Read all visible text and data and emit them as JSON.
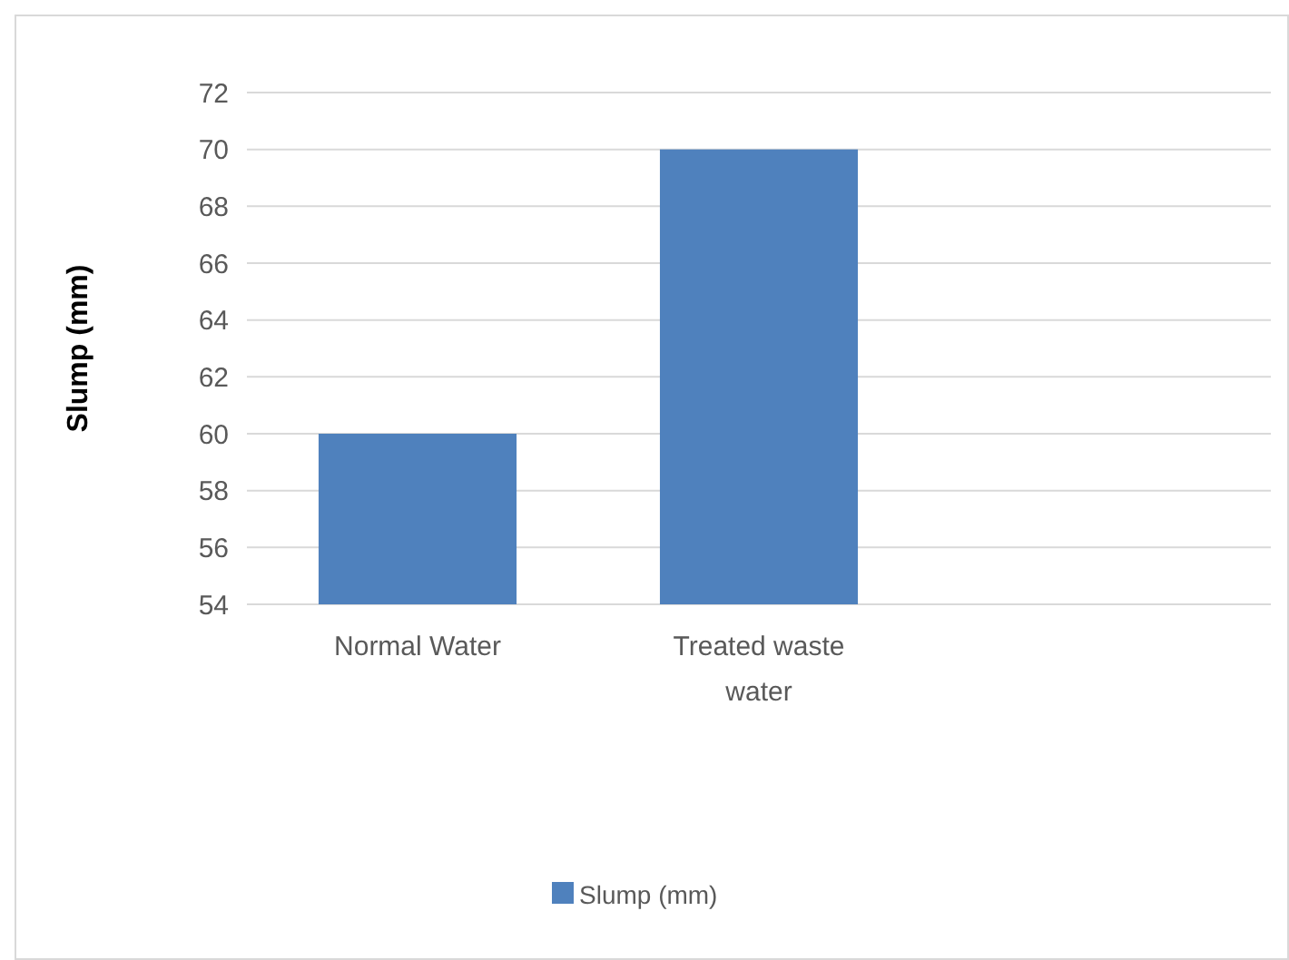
{
  "chart_data": {
    "type": "bar",
    "ylabel": "Slump (mm)",
    "categories": [
      "Normal Water",
      "Treated waste water",
      null
    ],
    "series": [
      {
        "name": "Slump (mm)",
        "color": "#4f81bd",
        "values": [
          60,
          70,
          null
        ]
      }
    ],
    "ylim": [
      54,
      72
    ],
    "yticks": [
      54,
      56,
      58,
      60,
      62,
      64,
      66,
      68,
      70,
      72
    ],
    "grid": "y",
    "legend": "bottom"
  }
}
